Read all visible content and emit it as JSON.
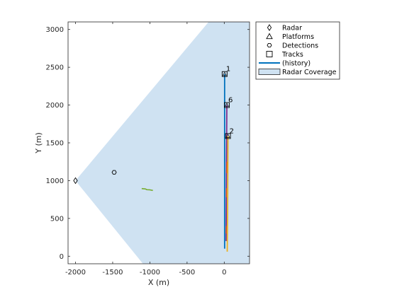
{
  "chart_data": {
    "type": "scatter",
    "xlabel": "X (m)",
    "ylabel": "Y (m)",
    "xlim": [
      -2100,
      340
    ],
    "ylim": [
      -100,
      3100
    ],
    "x_ticks": [
      -2000,
      -1500,
      -1000,
      -500,
      0
    ],
    "x_tick_labels": [
      "-2000",
      "-1500",
      "-1000",
      "-500",
      "0"
    ],
    "y_ticks": [
      0,
      500,
      1000,
      1500,
      2000,
      2500,
      3000
    ],
    "y_tick_labels": [
      "0",
      "500",
      "1000",
      "1500",
      "2000",
      "2500",
      "3000"
    ],
    "grid": false,
    "legend_placement": "outside-right-top",
    "legend": [
      {
        "label": "Radar",
        "marker": "diamond"
      },
      {
        "label": "Platforms",
        "marker": "triangle"
      },
      {
        "label": "Detections",
        "marker": "hexagon"
      },
      {
        "label": "Tracks",
        "marker": "square"
      },
      {
        "label": "(history)",
        "marker": "line",
        "color": "#0072bd"
      },
      {
        "label": "Radar Coverage",
        "marker": "patch",
        "color": "#cfe2f2"
      }
    ],
    "radar": {
      "x": -2000,
      "y": 1000
    },
    "coverage_polygon": [
      [
        -2000,
        1000
      ],
      [
        -1093,
        -100
      ],
      [
        340,
        -100
      ],
      [
        340,
        3100
      ],
      [
        -210,
        3100
      ]
    ],
    "detections": [
      {
        "x": -1480,
        "y": 1110
      }
    ],
    "tracks": [
      {
        "id": "1",
        "x": 5,
        "y": 2410
      },
      {
        "id": "6",
        "x": 35,
        "y": 2000
      },
      {
        "id": "2",
        "x": 50,
        "y": 1590
      }
    ],
    "histories": [
      {
        "color": "#0072bd",
        "width": 1.8,
        "points": [
          [
            5,
            2410
          ],
          [
            5,
            100
          ]
        ]
      },
      {
        "color": "#7e2f8e",
        "width": 1.8,
        "points": [
          [
            35,
            2000
          ],
          [
            30,
            1260
          ],
          [
            25,
            200
          ]
        ]
      },
      {
        "color": "#edb120",
        "width": 1.8,
        "points": [
          [
            50,
            1590
          ],
          [
            45,
            600
          ],
          [
            40,
            60
          ]
        ]
      },
      {
        "color": "#d95319",
        "width": 1.2,
        "points": [
          [
            35,
            1250
          ],
          [
            33,
            1100
          ]
        ]
      },
      {
        "color": "#d95319",
        "width": 1.2,
        "points": [
          [
            30,
            900
          ],
          [
            28,
            780
          ]
        ]
      },
      {
        "color": "#d95319",
        "width": 1.2,
        "points": [
          [
            27,
            400
          ],
          [
            25,
            300
          ]
        ]
      },
      {
        "color": "#77ac30",
        "width": 1.6,
        "points": [
          [
            -1110,
            895
          ],
          [
            -1060,
            890
          ],
          [
            -1040,
            880
          ],
          [
            -1000,
            878
          ],
          [
            -960,
            870
          ]
        ]
      }
    ]
  }
}
